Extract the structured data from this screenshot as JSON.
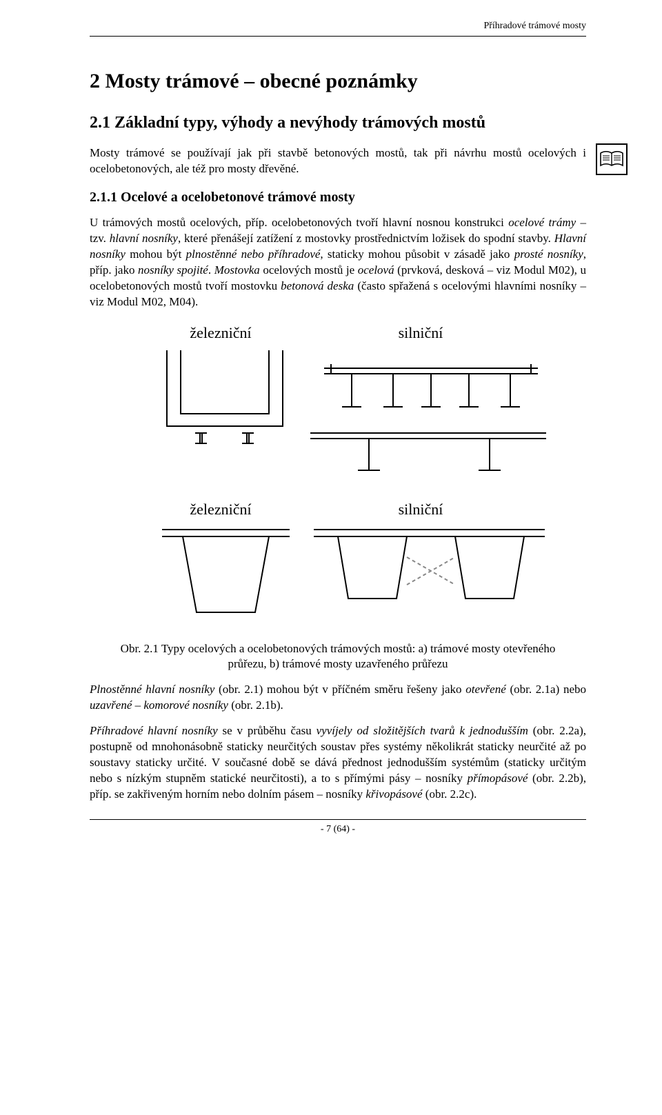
{
  "running_head": "Příhradové trámové mosty",
  "chapter_title": "2  Mosty trámové – obecné poznámky",
  "section_title": "2.1  Základní typy, výhody a nevýhody trámových mostů",
  "intro_paragraph": "Mosty trámové se používají jak při stavbě betonových mostů, tak při návrhu mostů ocelových i ocelobetonových, ale též pro mosty dřevěné.",
  "subsection_title": "2.1.1 Ocelové a ocelobetonové trámové mosty",
  "para_2_html": "U trámových mostů ocelových, příp. ocelobetonových tvoří hlavní nosnou konstrukci <em>ocelové trámy</em> – tzv. <em>hlavní nosníky</em>, které přenášejí zatížení z mostovky prostřednictvím ložisek do spodní stavby. <em>Hlavní nosníky</em> mohou být <em>plnostěnné nebo příhradové</em>, staticky mohou působit v zásadě jako <em>prosté nosníky</em>, příp. jako <em>nosníky spojité</em>. <em>Mostovka</em> ocelových mostů je <em>ocelová</em> (prvková, desková – viz Modul M02), u ocelobetonových mostů tvoří mostovku <em>betonová deska</em> (často spřažená s ocelovými hlavními nosníky – viz Modul M02, M04).",
  "figure": {
    "labels": {
      "rail": "železniční",
      "road": "silniční"
    },
    "colors": {
      "stroke": "#000000",
      "background": "#ffffff",
      "dash_gray": "#888888"
    },
    "caption": "Obr. 2.1 Typy ocelových a ocelobetonových trámových mostů: a) trámové mosty otevřeného průřezu, b) trámové mosty uzavřeného průřezu"
  },
  "para_3_html": "<em>Plnostěnné hlavní nosníky</em> (obr. 2.1) mohou být v příčném směru řešeny jako <em>otevřené</em> (obr. 2.1a) nebo <em>uzavřené – komorové nosníky</em> (obr. 2.1b).",
  "para_4_html": "<em>Příhradové hlavní nosníky</em> se v průběhu času <em>vyvíjely od složitějších tvarů k jednodušším</em> (obr. 2.2a), postupně od mnohonásobně staticky neurčitých soustav přes systémy několikrát staticky neurčité až po soustavy staticky určité. V současné době se dává přednost jednodušším systémům (staticky určitým nebo s nízkým stupněm statické neurčitosti), a to s přímými pásy – nosníky <em>přímopásové</em> (obr. 2.2b), příp. se zakřiveným horním nebo dolním pásem – nosníky <em>křivopásové</em> (obr. 2.2c).",
  "page_footer": "- 7 (64) -"
}
